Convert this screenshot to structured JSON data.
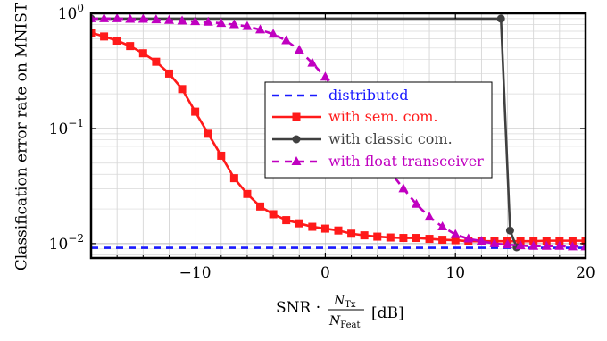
{
  "chart_data": {
    "type": "line",
    "title": "",
    "xlabel": "SNR · N_Tx / N_Feat [dB]",
    "xlabel_parts": {
      "prefix": "SNR · ",
      "num": "N",
      "num_sub": "Tx",
      "den": "N",
      "den_sub": "Feat",
      "unit": "[dB]"
    },
    "ylabel": "Classification error rate on MNIST",
    "xlim": [
      -18,
      20
    ],
    "ylim": [
      0.0075,
      1.0
    ],
    "yscale": "log",
    "grid": true,
    "legend_position": "center-right",
    "x_ticks": [
      -10,
      0,
      10,
      20
    ],
    "x_tick_labels": [
      "−10",
      "0",
      "10",
      "20"
    ],
    "y_ticks": [
      0.01,
      0.1,
      1
    ],
    "y_tick_labels": [
      {
        "base": "10",
        "exp": "−2"
      },
      {
        "base": "10",
        "exp": "−1"
      },
      {
        "base": "10",
        "exp": "0"
      }
    ],
    "x": [
      -18,
      -17,
      -16,
      -15,
      -14,
      -13,
      -12,
      -11,
      -10,
      -9,
      -8,
      -7,
      -6,
      -5,
      -4,
      -3,
      -2,
      -1,
      0,
      1,
      2,
      3,
      4,
      5,
      6,
      7,
      8,
      9,
      10,
      11,
      12,
      13,
      14,
      15,
      16,
      17,
      18,
      19,
      20
    ],
    "series": [
      {
        "name": "distributed",
        "color": "#1a1aff",
        "style": "dashed",
        "marker": "none",
        "x": [
          -18,
          20
        ],
        "values": [
          0.0092,
          0.0092
        ]
      },
      {
        "name": "with sem. com.",
        "color": "#ff1a1a",
        "style": "solid",
        "marker": "square",
        "values": [
          0.68,
          0.63,
          0.58,
          0.52,
          0.45,
          0.38,
          0.3,
          0.22,
          0.14,
          0.09,
          0.058,
          0.037,
          0.027,
          0.021,
          0.018,
          0.016,
          0.015,
          0.014,
          0.0135,
          0.013,
          0.0122,
          0.0118,
          0.0115,
          0.0113,
          0.0112,
          0.0112,
          0.011,
          0.0108,
          0.0107,
          0.0105,
          0.0105,
          0.0105,
          0.0105,
          0.0105,
          0.0105,
          0.0106,
          0.0106,
          0.0106,
          0.0106
        ]
      },
      {
        "name": "with classic com.",
        "color": "#404040",
        "style": "solid",
        "marker": "circle",
        "x": [
          -18,
          13.5,
          14.2,
          14.7
        ],
        "values": [
          0.9,
          0.9,
          0.013,
          0.0093
        ]
      },
      {
        "name": "with float transceiver",
        "color": "#c000c0",
        "style": "dashed",
        "marker": "triangle",
        "values": [
          0.9,
          0.9,
          0.9,
          0.89,
          0.89,
          0.88,
          0.87,
          0.86,
          0.85,
          0.84,
          0.82,
          0.8,
          0.77,
          0.72,
          0.66,
          0.58,
          0.48,
          0.37,
          0.28,
          0.2,
          0.135,
          0.09,
          0.06,
          0.042,
          0.03,
          0.022,
          0.017,
          0.014,
          0.012,
          0.011,
          0.0105,
          0.01,
          0.0098,
          0.0096,
          0.0095,
          0.0095,
          0.0095,
          0.0094,
          0.0094
        ]
      }
    ]
  }
}
